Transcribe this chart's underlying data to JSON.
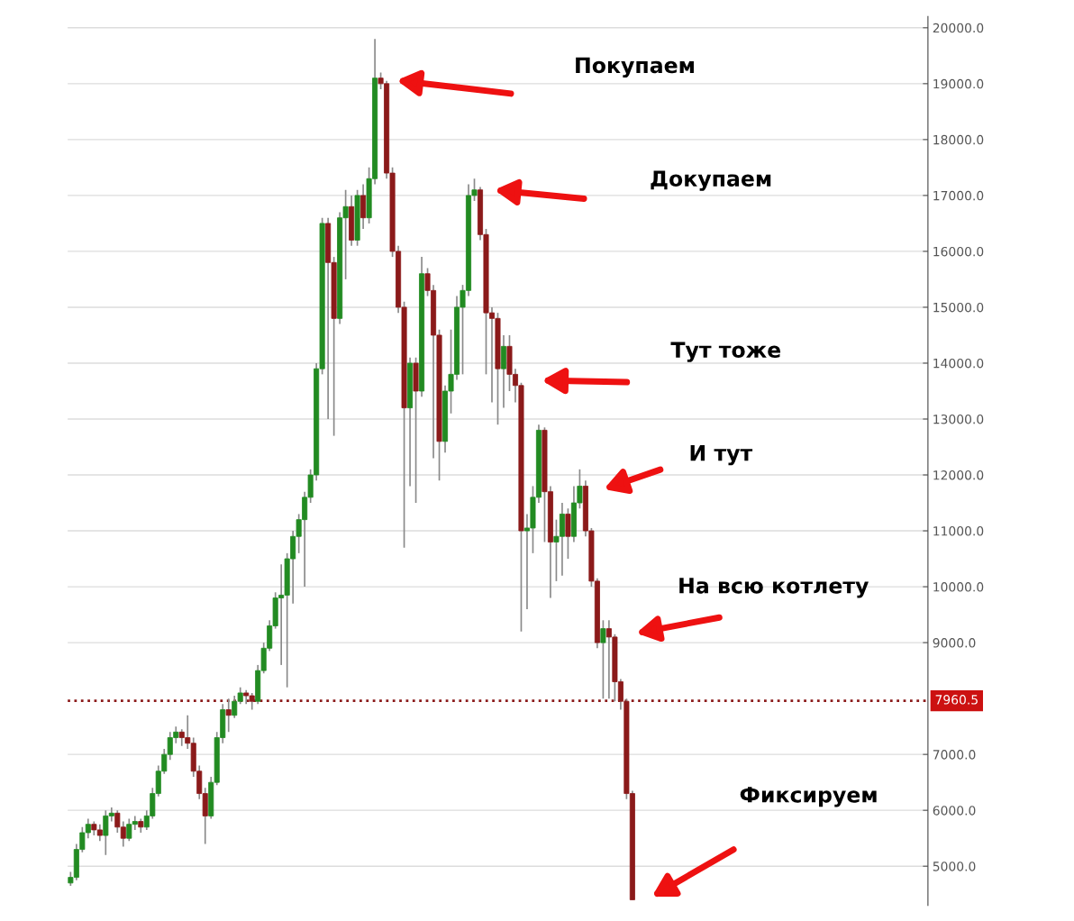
{
  "chart_data": {
    "type": "candlestick",
    "categories": [
      null,
      null,
      null,
      null,
      null,
      null,
      null,
      null,
      null,
      null,
      null,
      null,
      null,
      null,
      null,
      null,
      null,
      null,
      null,
      null,
      null,
      null,
      null,
      null,
      null,
      null,
      null,
      null,
      null,
      null,
      null,
      null,
      null,
      null,
      null,
      null,
      null,
      null,
      null,
      null,
      null,
      null,
      null,
      null,
      null,
      null,
      null,
      null,
      null,
      null,
      null,
      null,
      null,
      null,
      null,
      null,
      null,
      null,
      null,
      null,
      null,
      null,
      null,
      null,
      null,
      null,
      null,
      null,
      null,
      null,
      null,
      null,
      null,
      null,
      null,
      null,
      null,
      null,
      null,
      null,
      null,
      null,
      null,
      null,
      null,
      null,
      null,
      null,
      null,
      null,
      null,
      null,
      null,
      null,
      null,
      null,
      null,
      null,
      null,
      null,
      null,
      null,
      null,
      null,
      null,
      null,
      null,
      null,
      null,
      null,
      null,
      null,
      null,
      null,
      null,
      null,
      null,
      null,
      null,
      null,
      null,
      null,
      null,
      null,
      null,
      null,
      null,
      null,
      null,
      null,
      null,
      null,
      null,
      null,
      null,
      null,
      null,
      null,
      null,
      null,
      null,
      null,
      null,
      null,
      null,
      null,
      null
    ],
    "ohlc": [
      [
        4700,
        4900,
        4650,
        4800
      ],
      [
        4800,
        5400,
        4750,
        5300
      ],
      [
        5300,
        5700,
        5250,
        5600
      ],
      [
        5600,
        5850,
        5500,
        5750
      ],
      [
        5750,
        5800,
        5550,
        5650
      ],
      [
        5650,
        5750,
        5450,
        5550
      ],
      [
        5550,
        6000,
        5200,
        5900
      ],
      [
        5900,
        6050,
        5800,
        5950
      ],
      [
        5950,
        6000,
        5600,
        5700
      ],
      [
        5700,
        5800,
        5350,
        5500
      ],
      [
        5500,
        5850,
        5450,
        5750
      ],
      [
        5750,
        5900,
        5650,
        5800
      ],
      [
        5800,
        5850,
        5600,
        5700
      ],
      [
        5700,
        6000,
        5650,
        5900
      ],
      [
        5900,
        6400,
        5850,
        6300
      ],
      [
        6300,
        6800,
        6250,
        6700
      ],
      [
        6700,
        7100,
        6650,
        7000
      ],
      [
        7000,
        7400,
        6900,
        7300
      ],
      [
        7300,
        7500,
        7200,
        7400
      ],
      [
        7400,
        7450,
        7150,
        7300
      ],
      [
        7300,
        7700,
        7100,
        7200
      ],
      [
        7200,
        7300,
        6600,
        6700
      ],
      [
        6700,
        6800,
        6200,
        6300
      ],
      [
        6300,
        6400,
        5400,
        5900
      ],
      [
        5900,
        6600,
        5850,
        6500
      ],
      [
        6500,
        7400,
        6450,
        7300
      ],
      [
        7300,
        7900,
        7200,
        7800
      ],
      [
        7800,
        8000,
        7400,
        7700
      ],
      [
        7700,
        8050,
        7650,
        7950
      ],
      [
        7950,
        8200,
        7900,
        8100
      ],
      [
        8100,
        8150,
        7900,
        8050
      ],
      [
        8050,
        8100,
        7800,
        7950
      ],
      [
        7950,
        8600,
        7900,
        8500
      ],
      [
        8500,
        9000,
        8450,
        8900
      ],
      [
        8900,
        9400,
        8850,
        9300
      ],
      [
        9300,
        9900,
        9250,
        9800
      ],
      [
        9800,
        10400,
        8600,
        9850
      ],
      [
        9850,
        10600,
        8200,
        10500
      ],
      [
        10500,
        11000,
        9700,
        10900
      ],
      [
        10900,
        11300,
        10600,
        11200
      ],
      [
        11200,
        11700,
        10000,
        11600
      ],
      [
        11600,
        12100,
        11500,
        12000
      ],
      [
        12000,
        14000,
        11900,
        13900
      ],
      [
        13900,
        16600,
        13800,
        16500
      ],
      [
        16500,
        16600,
        13000,
        15800
      ],
      [
        15800,
        15900,
        12700,
        14800
      ],
      [
        14800,
        16700,
        14700,
        16600
      ],
      [
        16600,
        17100,
        15500,
        16800
      ],
      [
        16800,
        17000,
        16100,
        16200
      ],
      [
        16200,
        17100,
        16100,
        17000
      ],
      [
        17000,
        17200,
        16400,
        16600
      ],
      [
        16600,
        17500,
        16500,
        17300
      ],
      [
        17300,
        19800,
        17200,
        19100
      ],
      [
        19100,
        19200,
        18900,
        19000
      ],
      [
        19000,
        19050,
        17300,
        17400
      ],
      [
        17400,
        17500,
        15900,
        16000
      ],
      [
        16000,
        16100,
        14900,
        15000
      ],
      [
        15000,
        15100,
        10700,
        13200
      ],
      [
        13200,
        14100,
        11800,
        14000
      ],
      [
        14000,
        14100,
        11500,
        13500
      ],
      [
        13500,
        15900,
        13400,
        15600
      ],
      [
        15600,
        15700,
        15200,
        15300
      ],
      [
        15300,
        15400,
        12300,
        14500
      ],
      [
        14500,
        14600,
        11900,
        12600
      ],
      [
        12600,
        13600,
        12400,
        13500
      ],
      [
        13500,
        14600,
        13100,
        13800
      ],
      [
        13800,
        15200,
        13700,
        15000
      ],
      [
        15000,
        15400,
        13800,
        15300
      ],
      [
        15300,
        17200,
        15200,
        17000
      ],
      [
        17000,
        17300,
        16900,
        17100
      ],
      [
        17100,
        17150,
        16200,
        16300
      ],
      [
        16300,
        16400,
        13800,
        14900
      ],
      [
        14900,
        15000,
        13300,
        14800
      ],
      [
        14800,
        14900,
        12900,
        13900
      ],
      [
        13900,
        14500,
        13200,
        14300
      ],
      [
        14300,
        14500,
        13500,
        13800
      ],
      [
        13800,
        13900,
        13300,
        13600
      ],
      [
        13600,
        13650,
        9200,
        11000
      ],
      [
        11000,
        11300,
        9600,
        11050
      ],
      [
        11050,
        11800,
        10600,
        11600
      ],
      [
        11600,
        12900,
        11500,
        12800
      ],
      [
        12800,
        12850,
        10800,
        11700
      ],
      [
        11700,
        11800,
        9800,
        10800
      ],
      [
        10800,
        11200,
        10100,
        10900
      ],
      [
        10900,
        11500,
        10200,
        11300
      ],
      [
        11300,
        11400,
        10500,
        10900
      ],
      [
        10900,
        11800,
        10800,
        11500
      ],
      [
        11500,
        12100,
        11400,
        11800
      ],
      [
        11800,
        11900,
        10900,
        11000
      ],
      [
        11000,
        11050,
        10000,
        10100
      ],
      [
        10100,
        10150,
        8900,
        9000
      ],
      [
        9000,
        9400,
        8000,
        9250
      ],
      [
        9250,
        9400,
        8000,
        9100
      ],
      [
        9100,
        9150,
        7950,
        8300
      ],
      [
        8300,
        8350,
        7800,
        7950
      ],
      [
        7950,
        8000,
        6200,
        6300
      ],
      [
        6300,
        6350,
        4400,
        4400
      ],
      null,
      null,
      null,
      null,
      null,
      null,
      null,
      null,
      null,
      null,
      null,
      null,
      null,
      null,
      null,
      null,
      null,
      null,
      null,
      null,
      null,
      null,
      null,
      null,
      null,
      null,
      null,
      null,
      null,
      null,
      null,
      null,
      null,
      null,
      null,
      null,
      null,
      null,
      null,
      null,
      null,
      null,
      null,
      null,
      null,
      null,
      null,
      null,
      null,
      null
    ],
    "colors": [
      "#228b22",
      "#228b22",
      "#228b22",
      "#228b22",
      "#8b1a1a",
      "#8b1a1a",
      "#228b22",
      "#228b22",
      "#8b1a1a",
      "#8b1a1a",
      "#228b22",
      "#228b22",
      "#8b1a1a",
      "#228b22",
      "#228b22",
      "#228b22",
      "#228b22",
      "#228b22",
      "#228b22",
      "#8b1a1a",
      "#8b1a1a",
      "#8b1a1a",
      "#8b1a1a",
      "#8b1a1a",
      "#228b22",
      "#228b22",
      "#228b22",
      "#8b1a1a",
      "#228b22",
      "#228b22",
      "#8b1a1a",
      "#8b1a1a",
      "#228b22",
      "#228b22",
      "#228b22",
      "#228b22",
      "#228b22",
      "#228b22",
      "#228b22",
      "#228b22",
      "#228b22",
      "#228b22",
      "#228b22",
      "#228b22",
      "#8b1a1a",
      "#8b1a1a",
      "#228b22",
      "#228b22",
      "#8b1a1a",
      "#228b22",
      "#8b1a1a",
      "#228b22",
      "#228b22",
      "#8b1a1a",
      "#8b1a1a",
      "#8b1a1a",
      "#8b1a1a",
      "#8b1a1a",
      "#228b22",
      "#8b1a1a",
      "#228b22",
      "#8b1a1a",
      "#8b1a1a",
      "#8b1a1a",
      "#228b22",
      "#228b22",
      "#228b22",
      "#228b22",
      "#228b22",
      "#228b22",
      "#8b1a1a",
      "#8b1a1a",
      "#8b1a1a",
      "#8b1a1a",
      "#228b22",
      "#8b1a1a",
      "#8b1a1a",
      "#8b1a1a",
      "#228b22",
      "#228b22",
      "#228b22",
      "#8b1a1a",
      "#8b1a1a",
      "#228b22",
      "#228b22",
      "#8b1a1a",
      "#228b22",
      "#228b22",
      "#8b1a1a",
      "#8b1a1a",
      "#8b1a1a",
      "#228b22",
      "#8b1a1a",
      "#8b1a1a",
      "#8b1a1a",
      "#8b1a1a",
      "#8b1a1a",
      null,
      null,
      null,
      null,
      null,
      null,
      null,
      null,
      null,
      null,
      null,
      null,
      null,
      null,
      null,
      null,
      null,
      null,
      null,
      null,
      null,
      null,
      null,
      null,
      null,
      null,
      null,
      null,
      null,
      null,
      null,
      null,
      null,
      null,
      null,
      null,
      null,
      null,
      null,
      null,
      null,
      null,
      null,
      null,
      null,
      null,
      null,
      null,
      null,
      null
    ],
    "ylim": [
      4300,
      20200
    ],
    "yticks": [
      {
        "value": 5000,
        "label": "5000.0"
      },
      {
        "value": 6000,
        "label": "6000.0"
      },
      {
        "value": 7000,
        "label": "7000.0"
      },
      {
        "value": 9000,
        "label": "9000.0"
      },
      {
        "value": 10000,
        "label": "10000.0"
      },
      {
        "value": 11000,
        "label": "11000.0"
      },
      {
        "value": 12000,
        "label": "12000.0"
      },
      {
        "value": 13000,
        "label": "13000.0"
      },
      {
        "value": 14000,
        "label": "14000.0"
      },
      {
        "value": 15000,
        "label": "15000.0"
      },
      {
        "value": 16000,
        "label": "16000.0"
      },
      {
        "value": 17000,
        "label": "17000.0"
      },
      {
        "value": 18000,
        "label": "18000.0"
      },
      {
        "value": 19000,
        "label": "19000.0"
      },
      {
        "value": 20000,
        "label": "20000.0"
      }
    ],
    "ref_lines": [
      {
        "axis": "y",
        "value": 7960.5,
        "label": "7960.5",
        "color": "#8b1a1a",
        "line_style": "dotted"
      }
    ],
    "annotations": [
      "Покупаем",
      "Докупаем",
      "Тут тоже",
      "И тут",
      "На всю котлету",
      "Фиксируем"
    ],
    "grid": "y",
    "tick_labels": "y"
  }
}
